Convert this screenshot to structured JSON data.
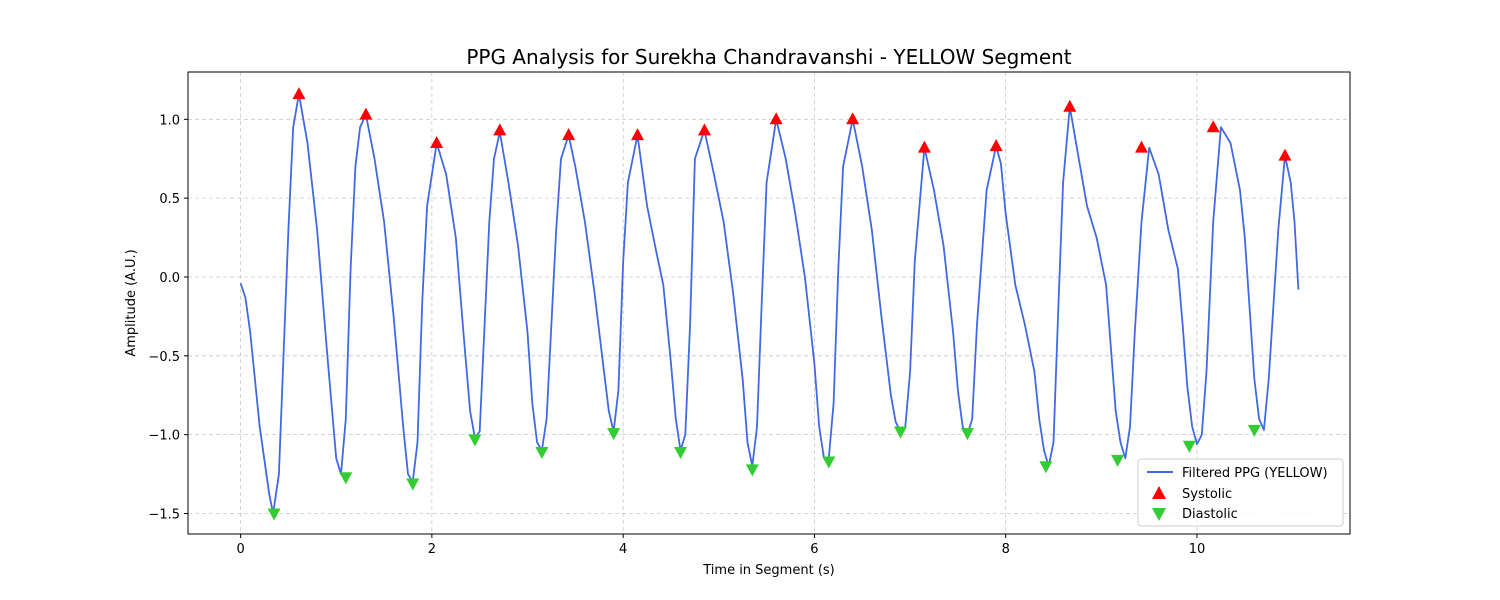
{
  "chart_data": {
    "type": "line",
    "title": "PPG Analysis for Surekha Chandravanshi - YELLOW Segment",
    "xlabel": "Time in Segment (s)",
    "ylabel": "Amplitude (A.U.)",
    "xlim": [
      -0.55,
      11.6
    ],
    "ylim": [
      -1.63,
      1.3
    ],
    "xticks": [
      0,
      2,
      4,
      6,
      8,
      10
    ],
    "yticks": [
      -1.5,
      -1.0,
      -0.5,
      0.0,
      0.5,
      1.0
    ],
    "xtick_labels": [
      "0",
      "2",
      "4",
      "6",
      "8",
      "10"
    ],
    "ytick_labels": [
      "−1.5",
      "−1.0",
      "−0.5",
      "0.0",
      "0.5",
      "1.0"
    ],
    "grid": true,
    "legend_position": "lower-right",
    "series": [
      {
        "name": "Filtered PPG (YELLOW)",
        "kind": "line",
        "color": "#4169e1",
        "x": [
          0.0,
          0.05,
          0.1,
          0.2,
          0.3,
          0.34,
          0.4,
          0.5,
          0.55,
          0.61,
          0.7,
          0.8,
          0.9,
          1.0,
          1.05,
          1.1,
          1.15,
          1.2,
          1.25,
          1.31,
          1.4,
          1.5,
          1.6,
          1.7,
          1.75,
          1.8,
          1.85,
          1.9,
          1.95,
          2.05,
          2.15,
          2.25,
          2.33,
          2.4,
          2.45,
          2.5,
          2.6,
          2.65,
          2.71,
          2.8,
          2.9,
          3.0,
          3.05,
          3.1,
          3.15,
          3.2,
          3.25,
          3.3,
          3.35,
          3.43,
          3.5,
          3.6,
          3.7,
          3.8,
          3.85,
          3.9,
          3.95,
          4.0,
          4.05,
          4.15,
          4.25,
          4.35,
          4.42,
          4.5,
          4.55,
          4.6,
          4.65,
          4.7,
          4.75,
          4.85,
          4.95,
          5.05,
          5.15,
          5.25,
          5.3,
          5.35,
          5.4,
          5.45,
          5.5,
          5.6,
          5.7,
          5.8,
          5.9,
          6.0,
          6.05,
          6.1,
          6.15,
          6.2,
          6.25,
          6.3,
          6.4,
          6.5,
          6.6,
          6.7,
          6.8,
          6.85,
          6.9,
          6.95,
          7.0,
          7.05,
          7.15,
          7.25,
          7.35,
          7.45,
          7.5,
          7.55,
          7.6,
          7.65,
          7.7,
          7.8,
          7.9,
          7.95,
          8.0,
          8.1,
          8.2,
          8.3,
          8.35,
          8.4,
          8.45,
          8.5,
          8.55,
          8.6,
          8.67,
          8.75,
          8.85,
          8.95,
          9.05,
          9.1,
          9.15,
          9.2,
          9.25,
          9.3,
          9.35,
          9.42,
          9.5,
          9.6,
          9.7,
          9.8,
          9.85,
          9.9,
          9.95,
          10.0,
          10.05,
          10.1,
          10.17,
          10.25,
          10.35,
          10.45,
          10.5,
          10.55,
          10.6,
          10.65,
          10.7,
          10.75,
          10.85,
          10.92,
          10.98,
          11.02,
          11.06
        ],
        "y": [
          -0.04,
          -0.13,
          -0.35,
          -0.95,
          -1.38,
          -1.5,
          -1.25,
          0.3,
          0.95,
          1.16,
          0.85,
          0.3,
          -0.45,
          -1.15,
          -1.25,
          -0.9,
          0.05,
          0.7,
          0.95,
          1.03,
          0.75,
          0.35,
          -0.25,
          -0.95,
          -1.25,
          -1.3,
          -1.05,
          -0.15,
          0.45,
          0.85,
          0.65,
          0.25,
          -0.35,
          -0.85,
          -1.02,
          -0.98,
          0.35,
          0.75,
          0.92,
          0.6,
          0.2,
          -0.35,
          -0.8,
          -1.05,
          -1.1,
          -0.9,
          -0.3,
          0.3,
          0.75,
          0.9,
          0.7,
          0.35,
          -0.1,
          -0.6,
          -0.85,
          -0.98,
          -0.72,
          0.1,
          0.6,
          0.9,
          0.45,
          0.15,
          -0.05,
          -0.55,
          -0.9,
          -1.1,
          -1.0,
          -0.3,
          0.75,
          0.93,
          0.65,
          0.35,
          -0.1,
          -0.65,
          -1.05,
          -1.2,
          -0.95,
          -0.15,
          0.6,
          1.0,
          0.75,
          0.4,
          0.0,
          -0.55,
          -0.95,
          -1.15,
          -1.15,
          -0.8,
          0.05,
          0.7,
          1.0,
          0.7,
          0.3,
          -0.25,
          -0.75,
          -0.92,
          -0.98,
          -0.95,
          -0.6,
          0.1,
          0.82,
          0.55,
          0.2,
          -0.35,
          -0.72,
          -0.95,
          -1.0,
          -0.9,
          -0.3,
          0.55,
          0.83,
          0.72,
          0.4,
          -0.05,
          -0.3,
          -0.6,
          -0.9,
          -1.1,
          -1.2,
          -1.05,
          -0.2,
          0.6,
          1.08,
          0.8,
          0.45,
          0.25,
          -0.05,
          -0.45,
          -0.85,
          -1.05,
          -1.15,
          -0.95,
          -0.35,
          0.35,
          0.82,
          0.65,
          0.3,
          0.05,
          -0.3,
          -0.7,
          -0.95,
          -1.06,
          -1.0,
          -0.6,
          0.35,
          0.95,
          0.85,
          0.55,
          0.25,
          -0.2,
          -0.65,
          -0.9,
          -0.97,
          -0.65,
          0.3,
          0.77,
          0.6,
          0.35,
          -0.08
        ]
      },
      {
        "name": "Systolic",
        "kind": "marker-up",
        "color": "#ff0000",
        "x": [
          0.61,
          1.31,
          2.05,
          2.71,
          3.43,
          4.15,
          4.85,
          5.6,
          6.4,
          7.15,
          7.9,
          8.67,
          9.42,
          10.17,
          10.92
        ],
        "y": [
          1.16,
          1.03,
          0.85,
          0.93,
          0.9,
          0.9,
          0.93,
          1.0,
          1.0,
          0.82,
          0.83,
          1.08,
          0.82,
          0.95,
          0.77
        ]
      },
      {
        "name": "Diastolic",
        "kind": "marker-down",
        "color": "#32cd32",
        "x": [
          0.35,
          1.1,
          1.8,
          2.45,
          3.15,
          3.9,
          4.6,
          5.35,
          6.15,
          6.9,
          7.6,
          8.42,
          9.17,
          9.92,
          10.6
        ],
        "y": [
          -1.5,
          -1.27,
          -1.31,
          -1.03,
          -1.11,
          -0.99,
          -1.11,
          -1.22,
          -1.17,
          -0.98,
          -0.99,
          -1.2,
          -1.16,
          -1.07,
          -0.97
        ]
      }
    ]
  }
}
